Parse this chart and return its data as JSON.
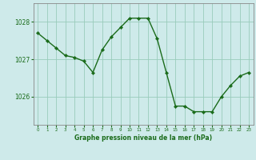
{
  "x": [
    0,
    1,
    2,
    3,
    4,
    5,
    6,
    7,
    8,
    9,
    10,
    11,
    12,
    13,
    14,
    15,
    16,
    17,
    18,
    19,
    20,
    21,
    22,
    23
  ],
  "y": [
    1027.7,
    1027.5,
    1027.3,
    1027.1,
    1027.05,
    1026.95,
    1026.65,
    1027.25,
    1027.6,
    1027.85,
    1028.1,
    1028.1,
    1028.1,
    1027.55,
    1026.65,
    1025.75,
    1025.75,
    1025.6,
    1025.6,
    1025.6,
    1026.0,
    1026.3,
    1026.55,
    1026.65
  ],
  "line_color": "#1a6b1a",
  "marker_color": "#1a6b1a",
  "bg_color": "#ceeaea",
  "grid_color": "#99ccbb",
  "axis_color": "#1a6b1a",
  "border_color": "#888888",
  "title": "Graphe pression niveau de la mer (hPa)",
  "xlim": [
    -0.5,
    23.5
  ],
  "ylim": [
    1025.25,
    1028.5
  ],
  "yticks": [
    1026,
    1027,
    1028
  ],
  "xticks": [
    0,
    1,
    2,
    3,
    4,
    5,
    6,
    7,
    8,
    9,
    10,
    11,
    12,
    13,
    14,
    15,
    16,
    17,
    18,
    19,
    20,
    21,
    22,
    23
  ]
}
